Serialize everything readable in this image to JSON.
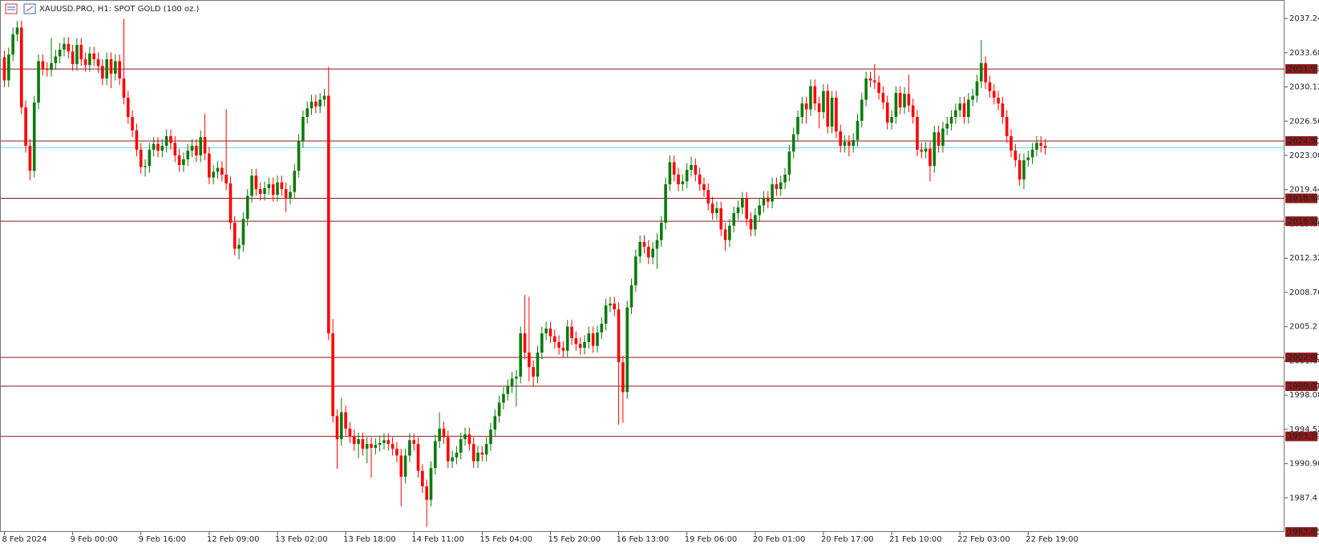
{
  "chart_data": {
    "type": "candlestick",
    "title": "XAUUSD.PRO, H1:  SPOT GOLD (100 oz.)",
    "categories": [
      "8 Feb 2024",
      null,
      null,
      null,
      null,
      null,
      null,
      null,
      null,
      null,
      null,
      null,
      null,
      null,
      null,
      null,
      "9 Feb 00:00",
      null,
      null,
      null,
      null,
      null,
      null,
      null,
      null,
      null,
      null,
      null,
      null,
      null,
      null,
      null,
      "9 Feb 16:00",
      null,
      null,
      null,
      null,
      null,
      null,
      null,
      null,
      null,
      null,
      null,
      null,
      null,
      null,
      null,
      "12 Feb 09:00",
      null,
      null,
      null,
      null,
      null,
      null,
      null,
      null,
      null,
      null,
      null,
      null,
      null,
      null,
      null,
      "13 Feb 02:00",
      null,
      null,
      null,
      null,
      null,
      null,
      null,
      null,
      null,
      null,
      null,
      null,
      null,
      null,
      null,
      "13 Feb 18:00",
      null,
      null,
      null,
      null,
      null,
      null,
      null,
      null,
      null,
      null,
      null,
      null,
      null,
      null,
      null,
      "14 Feb 11:00",
      null,
      null,
      null,
      null,
      null,
      null,
      null,
      null,
      null,
      null,
      null,
      null,
      null,
      null,
      null,
      "15 Feb 04:00",
      null,
      null,
      null,
      null,
      null,
      null,
      null,
      null,
      null,
      null,
      null,
      null,
      null,
      null,
      null,
      "15 Feb 20:00",
      null,
      null,
      null,
      null,
      null,
      null,
      null,
      null,
      null,
      null,
      null,
      null,
      null,
      null,
      null,
      "16 Feb 13:00",
      null,
      null,
      null,
      null,
      null,
      null,
      null,
      null,
      null,
      null,
      null,
      null,
      null,
      null,
      null,
      "19 Feb 06:00",
      null,
      null,
      null,
      null,
      null,
      null,
      null,
      null,
      null,
      null,
      null,
      null,
      null,
      null,
      null,
      "20 Feb 01:00",
      null,
      null,
      null,
      null,
      null,
      null,
      null,
      null,
      null,
      null,
      null,
      null,
      null,
      null,
      null,
      "20 Feb 17:00",
      null,
      null,
      null,
      null,
      null,
      null,
      null,
      null,
      null,
      null,
      null,
      null,
      null,
      null,
      null,
      "21 Feb 10:00",
      null,
      null,
      null,
      null,
      null,
      null,
      null,
      null,
      null,
      null,
      null,
      null,
      null,
      null,
      null,
      "22 Feb 03:00",
      null,
      null,
      null,
      null,
      null,
      null,
      null,
      null,
      null,
      null,
      null,
      null,
      null,
      null,
      null,
      "22 Feb 19:00",
      null,
      null,
      null,
      null
    ],
    "open": [
      2033.2,
      2030.8,
      2033.5,
      2035.6,
      2036.3,
      2028.0,
      2024.0,
      2021.4,
      2028.5,
      2032.8,
      2032.0,
      2031.9,
      2032.6,
      2033.3,
      2034.0,
      2034.6,
      2033.8,
      2032.5,
      2034.5,
      2033.0,
      2032.4,
      2033.6,
      2033.0,
      2032.3,
      2031.0,
      2033.0,
      2031.5,
      2032.8,
      2031.0,
      2029.0,
      2027.0,
      2025.6,
      2023.6,
      2021.8,
      2021.9,
      2023.6,
      2024.2,
      2023.5,
      2024.0,
      2025.0,
      2024.3,
      2023.0,
      2022.0,
      2022.6,
      2023.5,
      2024.0,
      2023.0,
      2024.9,
      2023.2,
      2020.7,
      2021.3,
      2021.7,
      2021.0,
      2020.1,
      2016.0,
      2013.3,
      2013.7,
      2016.4,
      2018.8,
      2020.9,
      2019.5,
      2019.0,
      2019.6,
      2020.0,
      2018.9,
      2020.2,
      2019.5,
      2018.6,
      2019.2,
      2021.4,
      2024.5,
      2027.0,
      2027.9,
      2028.6,
      2028.1,
      2028.8,
      2029.2,
      2004.5,
      1995.9,
      1993.5,
      1996.3,
      1994.6,
      1993.8,
      1993.0,
      1993.5,
      1992.5,
      1993.0,
      1992.6,
      1992.9,
      1993.1,
      1993.4,
      1993.0,
      1992.5,
      1991.8,
      1989.6,
      1991.8,
      1993.4,
      1993.0,
      1990.2,
      1988.6,
      1987.2,
      1990.5,
      1993.3,
      1994.6,
      1993.7,
      1991.2,
      1991.6,
      1992.1,
      1993.5,
      1994.0,
      1993.0,
      1991.2,
      1992.1,
      1991.9,
      1993.0,
      1994.5,
      1995.9,
      1997.3,
      1998.2,
      1999.0,
      1999.8,
      2000.0,
      2004.5,
      2002.5,
      2001.0,
      2000.0,
      2002.5,
      2004.5,
      2005.0,
      2004.2,
      2003.6,
      2003.0,
      2002.7,
      2005.2,
      2004.0,
      2003.4,
      2003.0,
      2003.6,
      2004.5,
      2003.2,
      2004.6,
      2005.5,
      2007.4,
      2007.6,
      2007.0,
      2001.5,
      1998.4,
      2007.2,
      2009.5,
      2012.5,
      2014.0,
      2013.5,
      2012.4,
      2013.3,
      2014.2,
      2016.0,
      2020.0,
      2022.3,
      2021.0,
      2020.0,
      2020.3,
      2021.5,
      2022.0,
      2021.0,
      2020.0,
      2019.4,
      2018.0,
      2017.0,
      2017.5,
      2015.3,
      2014.2,
      2015.7,
      2017.0,
      2017.6,
      2018.5,
      2016.4,
      2015.3,
      2016.8,
      2017.8,
      2018.6,
      2018.2,
      2020.0,
      2019.5,
      2020.2,
      2021.0,
      2023.4,
      2025.2,
      2027.0,
      2028.4,
      2027.8,
      2030.2,
      2028.4,
      2027.5,
      2029.7,
      2026.0,
      2029.0,
      2025.5,
      2024.0,
      2024.4,
      2024.0,
      2024.6,
      2026.6,
      2028.8,
      2031.0,
      2030.8,
      2030.6,
      2029.5,
      2028.5,
      2026.4,
      2027.0,
      2029.5,
      2028.0,
      2029.4,
      2028.2,
      2027.0,
      2023.6,
      2023.4,
      2023.7,
      2021.9,
      2025.4,
      2024.0,
      2025.8,
      2026.3,
      2027.0,
      2027.7,
      2028.4,
      2027.0,
      2028.8,
      2029.2,
      2030.7,
      2032.6,
      2030.6,
      2029.7,
      2029.0,
      2028.4,
      2027.0,
      2025.0,
      2023.5,
      2022.5,
      2020.5,
      2022.5,
      2022.8,
      2023.6,
      2024.3,
      2024.0
    ],
    "high": [
      2033.9,
      2034.2,
      2036.3,
      2037.0,
      2037.0,
      2028.7,
      2024.7,
      2029.2,
      2033.5,
      2033.5,
      2032.7,
      2035.2,
      2034.0,
      2034.7,
      2035.3,
      2035.3,
      2034.5,
      2035.2,
      2035.2,
      2033.7,
      2034.3,
      2034.3,
      2033.7,
      2033.0,
      2033.7,
      2033.7,
      2033.5,
      2033.5,
      2037.2,
      2029.7,
      2027.7,
      2026.3,
      2024.3,
      2022.6,
      2024.3,
      2024.9,
      2024.9,
      2024.7,
      2025.7,
      2025.7,
      2025.0,
      2023.7,
      2023.3,
      2024.2,
      2024.7,
      2024.7,
      2025.6,
      2027.3,
      2023.9,
      2022.0,
      2022.4,
      2022.4,
      2027.8,
      2020.8,
      2016.7,
      2014.4,
      2017.1,
      2019.5,
      2021.6,
      2021.6,
      2020.2,
      2020.3,
      2020.7,
      2020.7,
      2020.9,
      2020.9,
      2020.2,
      2019.9,
      2022.1,
      2025.2,
      2027.7,
      2028.6,
      2029.3,
      2029.3,
      2029.5,
      2029.9,
      2032.2,
      2006.0,
      1996.6,
      1997.8,
      1997.0,
      1995.3,
      1994.5,
      1994.2,
      1994.2,
      1993.7,
      1993.7,
      1993.6,
      1993.8,
      1994.1,
      1994.1,
      1993.7,
      1993.2,
      1992.5,
      1992.5,
      1994.1,
      1994.1,
      1993.7,
      1990.9,
      1989.3,
      1991.2,
      1994.0,
      1996.3,
      1995.3,
      1994.4,
      1992.3,
      1992.8,
      1994.2,
      1994.7,
      1994.7,
      1993.7,
      1992.8,
      1992.8,
      1993.7,
      1995.2,
      1996.6,
      1998.0,
      1998.9,
      1999.7,
      2000.5,
      2000.7,
      2005.2,
      2008.5,
      2008.3,
      2001.7,
      2003.2,
      2005.2,
      2005.7,
      2005.7,
      2004.9,
      2004.3,
      2003.7,
      2005.9,
      2005.9,
      2004.7,
      2004.1,
      2004.3,
      2005.2,
      2005.2,
      2005.3,
      2006.2,
      2008.1,
      2008.3,
      2008.3,
      2007.7,
      2002.2,
      2007.9,
      2010.2,
      2013.2,
      2014.7,
      2014.7,
      2014.2,
      2014.0,
      2014.9,
      2016.7,
      2020.7,
      2023.0,
      2023.0,
      2021.7,
      2021.0,
      2022.2,
      2022.9,
      2022.7,
      2021.7,
      2020.7,
      2020.1,
      2018.7,
      2018.2,
      2018.2,
      2016.0,
      2016.4,
      2017.7,
      2018.3,
      2019.2,
      2019.2,
      2017.1,
      2017.5,
      2018.5,
      2019.3,
      2019.3,
      2020.7,
      2020.7,
      2020.9,
      2021.7,
      2024.1,
      2025.9,
      2027.7,
      2029.1,
      2029.1,
      2030.9,
      2030.9,
      2029.1,
      2030.4,
      2030.4,
      2029.7,
      2029.7,
      2026.2,
      2025.1,
      2025.1,
      2025.3,
      2027.3,
      2029.5,
      2031.7,
      2031.7,
      2032.5,
      2031.3,
      2030.2,
      2029.2,
      2027.7,
      2030.2,
      2030.2,
      2030.1,
      2031.4,
      2028.9,
      2027.7,
      2024.3,
      2024.4,
      2024.4,
      2026.1,
      2026.1,
      2026.5,
      2027.0,
      2027.7,
      2028.4,
      2029.1,
      2029.1,
      2029.5,
      2029.9,
      2031.4,
      2035.0,
      2033.3,
      2031.3,
      2030.4,
      2029.7,
      2029.1,
      2027.7,
      2025.7,
      2024.2,
      2023.2,
      2023.2,
      2023.5,
      2024.3,
      2025.0,
      2025.0,
      2024.7
    ],
    "low": [
      2030.1,
      2030.1,
      2032.8,
      2034.9,
      2027.3,
      2023.3,
      2020.4,
      2020.7,
      2027.8,
      2031.3,
      2031.2,
      2031.2,
      2031.9,
      2032.6,
      2033.3,
      2033.1,
      2031.8,
      2031.8,
      2032.3,
      2031.7,
      2031.7,
      2032.3,
      2031.6,
      2030.3,
      2030.3,
      2030.0,
      2030.8,
      2030.3,
      2028.3,
      2026.3,
      2024.9,
      2022.9,
      2021.1,
      2020.8,
      2021.2,
      2022.9,
      2022.8,
      2022.8,
      2023.3,
      2023.6,
      2022.3,
      2021.3,
      2021.3,
      2021.9,
      2022.8,
      2022.3,
      2022.3,
      2022.5,
      2020.0,
      2020.0,
      2020.6,
      2020.3,
      2019.4,
      2015.3,
      2012.6,
      2012.2,
      2013.0,
      2015.7,
      2018.1,
      2018.8,
      2018.3,
      2018.3,
      2018.9,
      2018.2,
      2018.2,
      2018.8,
      2017.1,
      2017.9,
      2018.5,
      2020.7,
      2023.8,
      2026.3,
      2027.2,
      2027.4,
      2027.4,
      2028.1,
      2003.8,
      1995.2,
      1990.4,
      1992.8,
      1993.9,
      1993.1,
      1992.3,
      1991.5,
      1991.8,
      1991.0,
      1989.5,
      1991.9,
      1992.2,
      1992.4,
      1992.3,
      1991.8,
      1991.1,
      1986.5,
      1988.9,
      1991.1,
      1992.3,
      1989.5,
      1987.9,
      1984.4,
      1986.5,
      1989.8,
      1992.6,
      1993.0,
      1990.5,
      1990.5,
      1990.9,
      1991.4,
      1992.8,
      1992.3,
      1990.5,
      1990.5,
      1991.2,
      1991.2,
      1992.3,
      1993.8,
      1995.2,
      1996.6,
      1997.5,
      1998.3,
      1996.9,
      1999.3,
      2001.8,
      1999.5,
      1999.0,
      1999.3,
      2001.8,
      2003.8,
      2003.5,
      2002.9,
      2002.3,
      2002.0,
      2002.0,
      2003.3,
      2002.7,
      2002.3,
      2002.3,
      2002.9,
      2002.5,
      2002.5,
      2003.9,
      2004.8,
      2006.7,
      2006.3,
      1995.0,
      1995.2,
      1997.7,
      2006.5,
      2008.8,
      2011.8,
      2012.8,
      2011.7,
      2011.7,
      2011.2,
      2013.5,
      2015.3,
      2019.3,
      2020.3,
      2019.3,
      2019.3,
      2019.6,
      2020.8,
      2020.3,
      2019.3,
      2018.7,
      2017.3,
      2016.3,
      2016.3,
      2014.6,
      2013.1,
      2013.5,
      2015.0,
      2016.3,
      2016.9,
      2015.7,
      2014.6,
      2014.6,
      2016.1,
      2017.1,
      2017.5,
      2017.5,
      2018.8,
      2018.8,
      2019.5,
      2020.3,
      2022.7,
      2024.5,
      2026.3,
      2026.3,
      2027.1,
      2027.7,
      2025.8,
      2026.8,
      2025.3,
      2025.3,
      2024.8,
      2023.3,
      2023.3,
      2022.9,
      2023.3,
      2023.9,
      2025.9,
      2028.1,
      2030.1,
      2029.9,
      2028.8,
      2027.8,
      2025.7,
      2025.7,
      2026.3,
      2027.3,
      2027.3,
      2027.5,
      2026.3,
      2022.9,
      2022.7,
      2022.7,
      2020.3,
      2021.2,
      2023.3,
      2023.3,
      2025.1,
      2025.6,
      2026.3,
      2027.0,
      2026.3,
      2026.3,
      2028.1,
      2028.5,
      2030.0,
      2029.9,
      2029.0,
      2028.3,
      2027.7,
      2026.3,
      2024.3,
      2022.8,
      2021.8,
      2019.8,
      2019.5,
      2021.8,
      2022.1,
      2022.9,
      2023.3,
      2023.1
    ],
    "close": [
      2030.8,
      2033.5,
      2035.6,
      2036.3,
      2028.0,
      2024.0,
      2021.4,
      2028.5,
      2032.8,
      2032.0,
      2031.9,
      2032.6,
      2033.3,
      2034.0,
      2034.6,
      2033.8,
      2032.5,
      2034.5,
      2033.0,
      2032.4,
      2033.6,
      2033.0,
      2032.3,
      2031.0,
      2033.0,
      2031.5,
      2032.8,
      2031.0,
      2029.0,
      2027.0,
      2025.6,
      2023.6,
      2021.8,
      2021.9,
      2023.6,
      2024.2,
      2023.5,
      2024.0,
      2025.0,
      2024.3,
      2023.0,
      2022.0,
      2022.6,
      2023.5,
      2024.0,
      2023.0,
      2024.9,
      2023.2,
      2020.7,
      2021.3,
      2021.7,
      2021.0,
      2020.1,
      2016.0,
      2013.3,
      2013.7,
      2016.4,
      2018.8,
      2020.9,
      2019.5,
      2019.0,
      2019.6,
      2020.0,
      2018.9,
      2020.2,
      2019.5,
      2018.6,
      2019.2,
      2021.4,
      2024.5,
      2027.0,
      2027.9,
      2028.6,
      2028.1,
      2028.8,
      2029.2,
      2004.5,
      1995.9,
      1993.5,
      1996.3,
      1994.6,
      1993.8,
      1993.0,
      1993.5,
      1992.5,
      1993.0,
      1992.6,
      1992.9,
      1993.1,
      1993.4,
      1993.0,
      1992.5,
      1991.8,
      1989.6,
      1991.8,
      1993.4,
      1993.0,
      1990.2,
      1988.6,
      1987.2,
      1990.5,
      1993.3,
      1994.6,
      1993.7,
      1991.2,
      1991.6,
      1992.1,
      1993.5,
      1994.0,
      1993.0,
      1991.2,
      1992.1,
      1991.9,
      1993.0,
      1994.5,
      1995.9,
      1997.3,
      1998.2,
      1999.0,
      1999.8,
      2000.0,
      2004.5,
      2002.5,
      2001.0,
      2000.0,
      2002.5,
      2004.5,
      2005.0,
      2004.2,
      2003.6,
      2003.0,
      2002.7,
      2005.2,
      2004.0,
      2003.4,
      2003.0,
      2003.6,
      2004.5,
      2003.2,
      2004.6,
      2005.5,
      2007.4,
      2007.6,
      2007.0,
      2001.5,
      1998.4,
      2007.2,
      2009.5,
      2012.5,
      2014.0,
      2013.5,
      2012.4,
      2013.3,
      2014.2,
      2016.0,
      2020.0,
      2022.3,
      2021.0,
      2020.0,
      2020.3,
      2021.5,
      2022.0,
      2021.0,
      2020.0,
      2019.4,
      2018.0,
      2017.0,
      2017.5,
      2015.3,
      2014.2,
      2015.7,
      2017.0,
      2017.6,
      2018.5,
      2016.4,
      2015.3,
      2016.8,
      2017.8,
      2018.6,
      2018.2,
      2020.0,
      2019.5,
      2020.2,
      2021.0,
      2023.4,
      2025.2,
      2027.0,
      2028.4,
      2027.8,
      2030.2,
      2028.4,
      2027.5,
      2029.7,
      2026.0,
      2029.0,
      2025.5,
      2024.0,
      2024.4,
      2024.0,
      2024.6,
      2026.6,
      2028.8,
      2031.0,
      2030.8,
      2030.6,
      2029.5,
      2028.5,
      2026.4,
      2027.0,
      2029.5,
      2028.0,
      2029.4,
      2028.2,
      2027.0,
      2023.6,
      2023.4,
      2023.7,
      2021.9,
      2025.4,
      2024.0,
      2025.8,
      2026.3,
      2027.0,
      2027.7,
      2028.4,
      2027.0,
      2028.8,
      2029.2,
      2030.7,
      2032.6,
      2030.6,
      2029.7,
      2029.0,
      2028.4,
      2027.0,
      2025.0,
      2023.5,
      2022.5,
      2020.5,
      2022.5,
      2022.8,
      2023.6,
      2024.3,
      2024.0,
      2023.8
    ],
    "up_color": "#0b7a0b",
    "down_color": "#ff0000",
    "ylim": [
      1983.85,
      2039.16
    ],
    "yticks": [
      1987.4,
      1990.96,
      1994.52,
      1998.08,
      2001.64,
      2005.2,
      2008.76,
      2012.32,
      2015.88,
      2019.44,
      {
        "value": 2023,
        "label": "2023.00"
      },
      2026.56,
      2030.12,
      2033.68,
      2037.24
    ],
    "levels": [
      2031.99,
      {
        "value": 2024.5,
        "label": "2024.50"
      },
      2018.54,
      2016.16,
      {
        "value": 2002,
        "label": "2002.00"
      },
      1999.01,
      1993.79
    ],
    "level_color": "#8b1a1a",
    "current_price": 2023.8,
    "current_color": "#5fe0ee"
  }
}
